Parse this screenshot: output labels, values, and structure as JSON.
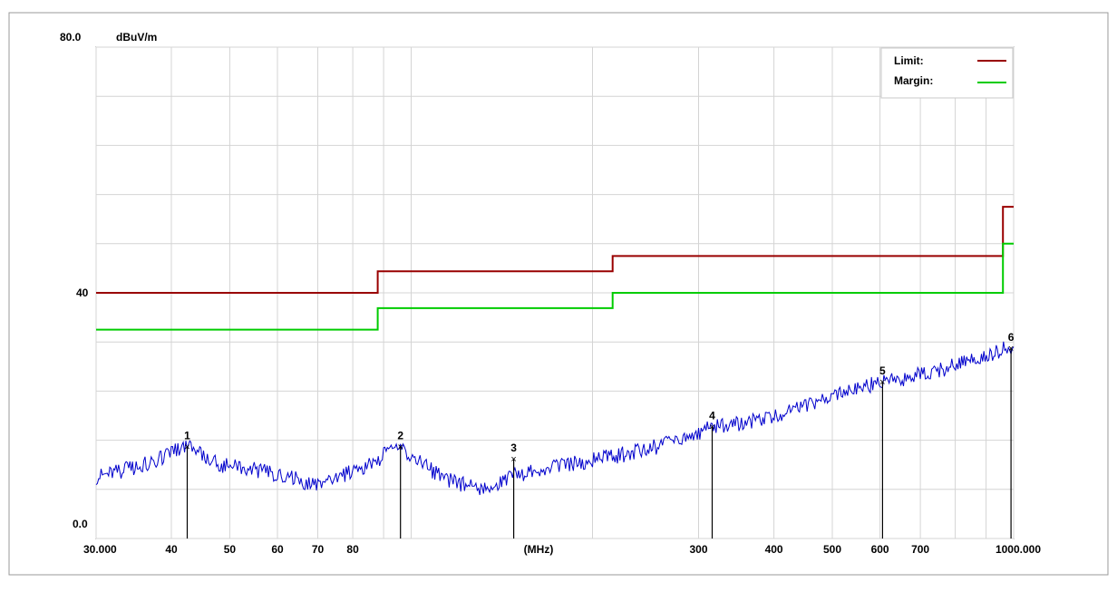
{
  "chart_data": {
    "type": "line",
    "x_scale": "log",
    "xlim": [
      30,
      1000
    ],
    "ylim": [
      0,
      80
    ],
    "y_top_label": "80.0",
    "y_mid_label": "40",
    "y_bottom_label": "0.0",
    "y_unit": "dBuV/m",
    "x_unit": "(MHz)",
    "x_ticks": [
      {
        "value": 30,
        "label": "30.000"
      },
      {
        "value": 40,
        "label": "40"
      },
      {
        "value": 50,
        "label": "50"
      },
      {
        "value": 60,
        "label": "60"
      },
      {
        "value": 70,
        "label": "70"
      },
      {
        "value": 80,
        "label": "80"
      },
      {
        "value": 300,
        "label": "300"
      },
      {
        "value": 400,
        "label": "400"
      },
      {
        "value": 500,
        "label": "500"
      },
      {
        "value": 600,
        "label": "600"
      },
      {
        "value": 700,
        "label": "700"
      },
      {
        "value": 1000,
        "label": "1000.000"
      }
    ],
    "x_grid": [
      30,
      40,
      50,
      60,
      70,
      80,
      90,
      100,
      200,
      300,
      400,
      500,
      600,
      700,
      800,
      900,
      1000
    ],
    "y_grid": [
      0,
      8,
      16,
      24,
      32,
      40,
      48,
      56,
      64,
      72,
      80
    ],
    "legend": {
      "position": "top-right",
      "items": [
        {
          "label": "Limit:",
          "color": "#990000"
        },
        {
          "label": "Margin:",
          "color": "#00cc00"
        }
      ]
    },
    "series": [
      {
        "name": "Limit:",
        "color": "#990000",
        "points": [
          [
            30,
            40
          ],
          [
            88,
            40
          ],
          [
            88,
            43.5
          ],
          [
            216,
            43.5
          ],
          [
            216,
            46
          ],
          [
            960,
            46
          ],
          [
            960,
            54
          ],
          [
            1000,
            54
          ]
        ]
      },
      {
        "name": "Margin:",
        "color": "#00cc00",
        "points": [
          [
            30,
            34
          ],
          [
            88,
            34
          ],
          [
            88,
            37.5
          ],
          [
            216,
            37.5
          ],
          [
            216,
            40
          ],
          [
            960,
            40
          ],
          [
            960,
            48
          ],
          [
            1000,
            48
          ]
        ]
      },
      {
        "color": "#0000cc",
        "points": [
          [
            30,
            10
          ],
          [
            33,
            11
          ],
          [
            36,
            12
          ],
          [
            39,
            13.2
          ],
          [
            41,
            14.5
          ],
          [
            42.5,
            15
          ],
          [
            45,
            13.5
          ],
          [
            48,
            12
          ],
          [
            52,
            11.5
          ],
          [
            56,
            11
          ],
          [
            60,
            10.5
          ],
          [
            64,
            9.8
          ],
          [
            68,
            9
          ],
          [
            71,
            8.5
          ],
          [
            74,
            9.2
          ],
          [
            78,
            10.5
          ],
          [
            82,
            11.5
          ],
          [
            86,
            12.2
          ],
          [
            90,
            13.5
          ],
          [
            94,
            14.5
          ],
          [
            96,
            15
          ],
          [
            100,
            13.5
          ],
          [
            105,
            12
          ],
          [
            110,
            10.5
          ],
          [
            118,
            9.2
          ],
          [
            125,
            8.5
          ],
          [
            130,
            8.3
          ],
          [
            135,
            8.6
          ],
          [
            140,
            9.2
          ],
          [
            146,
            10
          ],
          [
            150,
            10.5
          ],
          [
            158,
            10.8
          ],
          [
            170,
            11.5
          ],
          [
            185,
            12.2
          ],
          [
            200,
            12.8
          ],
          [
            220,
            13.5
          ],
          [
            240,
            14.2
          ],
          [
            260,
            15.2
          ],
          [
            280,
            16.2
          ],
          [
            300,
            17.2
          ],
          [
            316,
            18.2
          ],
          [
            340,
            18.5
          ],
          [
            380,
            19.5
          ],
          [
            420,
            20.5
          ],
          [
            470,
            22
          ],
          [
            520,
            23.5
          ],
          [
            570,
            24.8
          ],
          [
            606,
            25.5
          ],
          [
            650,
            26
          ],
          [
            700,
            26.8
          ],
          [
            760,
            27.5
          ],
          [
            820,
            28.5
          ],
          [
            880,
            29.5
          ],
          [
            940,
            30.5
          ],
          [
            980,
            31
          ],
          [
            1000,
            31.2
          ]
        ]
      }
    ],
    "markers": [
      {
        "label": "1",
        "x": 42.5,
        "y": 15
      },
      {
        "label": "2",
        "x": 96,
        "y": 15
      },
      {
        "label": "3",
        "x": 148,
        "y": 13
      },
      {
        "label": "4",
        "x": 316,
        "y": 18.2
      },
      {
        "label": "5",
        "x": 606,
        "y": 25.5
      },
      {
        "label": "6",
        "x": 990,
        "y": 31
      }
    ]
  }
}
